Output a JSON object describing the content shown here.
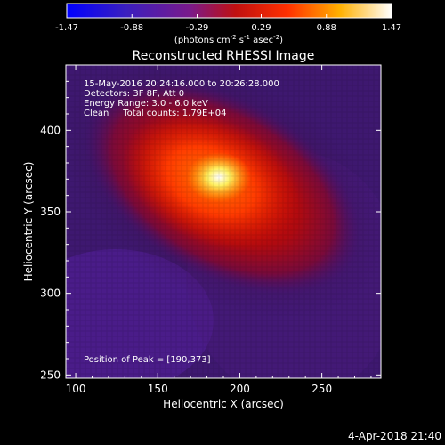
{
  "colorbar": {
    "ticks": [
      "-1.47",
      "-0.88",
      "-0.29",
      "0.29",
      "0.88",
      "1.47"
    ],
    "units_main": "(photons cm",
    "units_e1": "-2",
    "units_s": " s",
    "units_e2": "-1",
    "units_asec": " asec",
    "units_e3": "-2",
    "units_close": ")"
  },
  "chart_data": {
    "type": "heatmap",
    "title": "Reconstructed RHESSI Image",
    "xlabel": "Heliocentric X (arcsec)",
    "ylabel": "Heliocentric Y (arcsec)",
    "xlim": [
      94,
      286
    ],
    "ylim": [
      248,
      440
    ],
    "x_ticks": [
      100,
      150,
      200,
      250
    ],
    "y_ticks": [
      250,
      300,
      350,
      400
    ],
    "color_range": [
      -1.47,
      1.47
    ],
    "colormap": "blue-purple-red-yellow-white",
    "peak": [
      190,
      373
    ],
    "annotations": [
      "15-May-2016 20:24:16.000 to 20:26:28.000",
      "Detectors: 3F 8F, Att 0",
      "Energy Range: 3.0 - 6.0 keV",
      "Clean     Total counts: 1.79E+04"
    ],
    "peak_label": "Position of Peak = [190,373]"
  },
  "footer": {
    "date": "4-Apr-2018 21:40"
  }
}
